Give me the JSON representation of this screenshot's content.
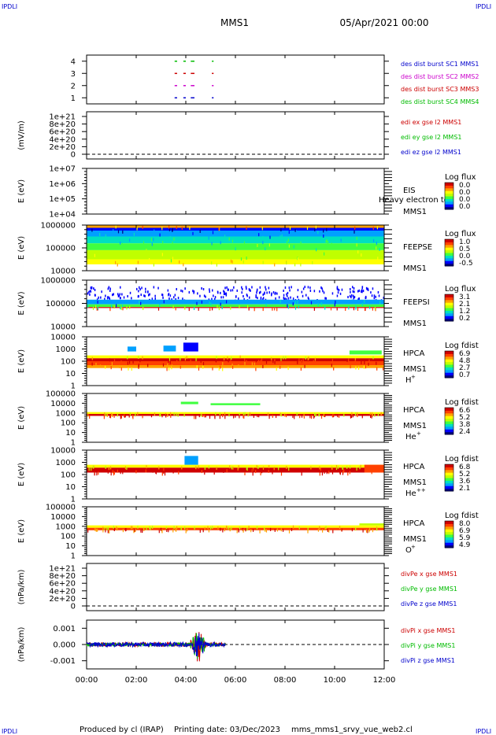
{
  "header": {
    "corner_tl": "IPDLI",
    "corner_tr": "IPDLI",
    "corner_bl": "IPDLI",
    "corner_br": "IPDLI",
    "title": "MMS1",
    "datetime": "05/Apr/2021 00:00"
  },
  "footer": {
    "produced_by": "Produced by cl (IRAP)",
    "printing_date": "Printing date: 03/Dec/2023",
    "script": "mms_mms1_srvy_vue_web2.cl"
  },
  "colors": {
    "spectrogram_scale": [
      "#000080",
      "#0000ff",
      "#00a0ff",
      "#00e0c0",
      "#40ff40",
      "#c0ff00",
      "#ffff00",
      "#ffa000",
      "#ff4000",
      "#d00000"
    ]
  },
  "chart_data": {
    "type": "multi-panel",
    "x_axis": {
      "ticks": [
        "00:00",
        "02:00",
        "04:00",
        "06:00",
        "08:00",
        "10:00",
        "12:00"
      ],
      "range_hours": [
        0,
        12
      ]
    },
    "panels": [
      {
        "id": "burst",
        "type": "scatter",
        "ylim": [
          0.5,
          4.5
        ],
        "ytick_labels": [
          "1",
          "2",
          "3",
          "4"
        ],
        "labels": [
          {
            "text": "des dist burst SC1 MMS1",
            "color": "#0000cc"
          },
          {
            "text": "des dist burst SC2 MMS2",
            "color": "#cc00cc"
          },
          {
            "text": "des dist burst SC3 MMS3",
            "color": "#cc0000"
          },
          {
            "text": "des dist burst SC4 MMS4",
            "color": "#00bb00"
          }
        ],
        "series": [
          {
            "level": 1,
            "color": "#0000cc",
            "intervals": [
              [
                3.55,
                3.65
              ],
              [
                3.9,
                4.0
              ],
              [
                4.2,
                4.35
              ],
              [
                5.05,
                5.12
              ]
            ]
          },
          {
            "level": 2,
            "color": "#cc00cc",
            "intervals": [
              [
                3.55,
                3.65
              ],
              [
                3.9,
                4.0
              ],
              [
                4.2,
                4.35
              ],
              [
                5.05,
                5.12
              ]
            ]
          },
          {
            "level": 3,
            "color": "#cc0000",
            "intervals": [
              [
                3.55,
                3.65
              ],
              [
                3.9,
                4.0
              ],
              [
                4.2,
                4.35
              ],
              [
                5.05,
                5.12
              ]
            ]
          },
          {
            "level": 4,
            "color": "#00bb00",
            "intervals": [
              [
                3.55,
                3.65
              ],
              [
                3.9,
                4.0
              ],
              [
                4.2,
                4.35
              ],
              [
                5.05,
                5.12
              ]
            ]
          }
        ]
      },
      {
        "id": "edi",
        "type": "line",
        "ylabel": "(mV/m)",
        "ytick_labels": [
          "1e+21",
          "8e+20",
          "6e+20",
          "4e+20",
          "2e+20",
          "0"
        ],
        "zero_line": true,
        "labels": [
          {
            "text": "edi ex gse l2 MMS1",
            "color": "#cc0000"
          },
          {
            "text": "edi ey gse l2 MMS1",
            "color": "#00bb00"
          },
          {
            "text": "edi ez gse l2 MMS1",
            "color": "#0000cc"
          }
        ]
      },
      {
        "id": "eis",
        "type": "heatmap",
        "ylabel": "E (eV)",
        "ytick_labels": [
          "1e+07",
          "1e+06",
          "1e+05",
          "1e+04"
        ],
        "instrument": "EIS",
        "sc": "MMS1",
        "overlay_text": "Heavy electron to",
        "cbar_title": "Log flux",
        "cbar_ticks": [
          "0.0",
          "0.0",
          "0.0",
          "0.0"
        ],
        "empty": true
      },
      {
        "id": "feepse",
        "type": "heatmap",
        "ylabel": "E (eV)",
        "ytick_labels": [
          "1000000",
          "100000",
          "10000"
        ],
        "instrument": "FEEPSE",
        "sc": "MMS1",
        "cbar_title": "Log flux",
        "cbar_ticks": [
          "1.0",
          "0.5",
          "0.0",
          "-0.5"
        ],
        "bands": [
          {
            "from": 0.0,
            "to": 0.06,
            "level": 7
          },
          {
            "from": 0.06,
            "to": 0.12,
            "level": 1
          },
          {
            "from": 0.12,
            "to": 0.25,
            "level": 2
          },
          {
            "from": 0.25,
            "to": 0.4,
            "level": 3
          },
          {
            "from": 0.4,
            "to": 0.55,
            "level": 4
          },
          {
            "from": 0.55,
            "to": 0.75,
            "level": 5
          },
          {
            "from": 0.75,
            "to": 0.86,
            "level": 6
          }
        ]
      },
      {
        "id": "feepsi",
        "type": "heatmap",
        "ylabel": "E (eV)",
        "ytick_labels": [
          "1000000",
          "100000",
          "10000"
        ],
        "instrument": "FEEPSI",
        "sc": "MMS1",
        "cbar_title": "Log flux",
        "cbar_ticks": [
          "3.1",
          "2.1",
          "1.2",
          "0.2"
        ],
        "bands": [
          {
            "from": 0.12,
            "to": 0.42,
            "level": 1,
            "sparse": true
          },
          {
            "from": 0.42,
            "to": 0.52,
            "level": 2
          },
          {
            "from": 0.52,
            "to": 0.58,
            "level": 4
          },
          {
            "from": 0.58,
            "to": 0.6,
            "level": 9
          }
        ]
      },
      {
        "id": "hpca_h",
        "type": "heatmap",
        "ylabel": "E (eV)",
        "ytick_labels": [
          "10000",
          "1000",
          "100",
          "10",
          "1"
        ],
        "instrument": "HPCA",
        "sc": "MMS1",
        "species": "H",
        "charge": "+",
        "cbar_title": "Log fdist",
        "cbar_ticks": [
          "6.9",
          "4.8",
          "2.7",
          "0.7"
        ],
        "bands": [
          {
            "from": 0.38,
            "to": 0.44,
            "level": 6
          },
          {
            "from": 0.44,
            "to": 0.5,
            "level": 9
          },
          {
            "from": 0.5,
            "to": 0.58,
            "level": 8
          },
          {
            "from": 0.58,
            "to": 0.64,
            "level": 7
          }
        ],
        "patches": [
          {
            "t0": 1.65,
            "t1": 2.0,
            "from": 0.2,
            "to": 0.3,
            "level": 2
          },
          {
            "t0": 3.1,
            "t1": 3.6,
            "from": 0.18,
            "to": 0.3,
            "level": 2
          },
          {
            "t0": 3.9,
            "t1": 4.5,
            "from": 0.12,
            "to": 0.3,
            "level": 1
          },
          {
            "t0": 10.6,
            "t1": 11.9,
            "from": 0.28,
            "to": 0.36,
            "level": 4
          }
        ]
      },
      {
        "id": "hpca_he",
        "type": "heatmap",
        "ylabel": "E (eV)",
        "ytick_labels": [
          "100000",
          "10000",
          "1000",
          "100",
          "10",
          "1"
        ],
        "instrument": "HPCA",
        "sc": "MMS1",
        "species": "He",
        "charge": "+",
        "cbar_title": "Log fdist",
        "cbar_ticks": [
          "6.6",
          "5.2",
          "3.8",
          "2.4"
        ],
        "bands": [
          {
            "from": 0.38,
            "to": 0.42,
            "level": 6
          },
          {
            "from": 0.42,
            "to": 0.46,
            "level": 9
          }
        ],
        "patches": [
          {
            "t0": 3.8,
            "t1": 4.5,
            "from": 0.17,
            "to": 0.22,
            "level": 4
          },
          {
            "t0": 5.0,
            "t1": 7.0,
            "from": 0.2,
            "to": 0.24,
            "level": 4
          }
        ]
      },
      {
        "id": "hpca_he2",
        "type": "heatmap",
        "ylabel": "E (eV)",
        "ytick_labels": [
          "10000",
          "1000",
          "100",
          "10",
          "1"
        ],
        "instrument": "HPCA",
        "sc": "MMS1",
        "species": "He",
        "charge": "++",
        "cbar_title": "Log fdist",
        "cbar_ticks": [
          "6.8",
          "5.2",
          "3.6",
          "2.1"
        ],
        "bands": [
          {
            "from": 0.3,
            "to": 0.36,
            "level": 6
          },
          {
            "from": 0.36,
            "to": 0.46,
            "level": 9
          }
        ],
        "patches": [
          {
            "t0": 3.95,
            "t1": 4.5,
            "from": 0.12,
            "to": 0.3,
            "level": 2
          },
          {
            "t0": 11.2,
            "t1": 12.0,
            "from": 0.3,
            "to": 0.46,
            "level": 8
          }
        ]
      },
      {
        "id": "hpca_o",
        "type": "heatmap",
        "ylabel": "E (eV)",
        "ytick_labels": [
          "100000",
          "10000",
          "1000",
          "100",
          "10",
          "1"
        ],
        "instrument": "HPCA",
        "sc": "MMS1",
        "species": "O",
        "charge": "+",
        "cbar_title": "Log fdist",
        "cbar_ticks": [
          "8.0",
          "6.9",
          "5.9",
          "4.9"
        ],
        "bands": [
          {
            "from": 0.38,
            "to": 0.43,
            "level": 6
          },
          {
            "from": 0.43,
            "to": 0.48,
            "level": 8
          }
        ],
        "patches": [
          {
            "t0": 11.0,
            "t1": 12.0,
            "from": 0.34,
            "to": 0.38,
            "level": 5
          }
        ]
      },
      {
        "id": "divpe",
        "type": "line",
        "ylabel": "(nPa/km)",
        "ytick_labels": [
          "1e+21",
          "8e+20",
          "6e+20",
          "4e+20",
          "2e+20",
          "0"
        ],
        "zero_line": true,
        "labels": [
          {
            "text": "divPe x gse MMS1",
            "color": "#cc0000"
          },
          {
            "text": "divPe y gse MMS1",
            "color": "#00bb00"
          },
          {
            "text": "divPe z gse MMS1",
            "color": "#0000cc"
          }
        ]
      },
      {
        "id": "divpi",
        "type": "line",
        "ylabel": "(nPa/km)",
        "ylim": [
          -0.0015,
          0.0015
        ],
        "ytick_labels": [
          "0.001",
          "0.000",
          "-0.001"
        ],
        "ytick_values": [
          0.001,
          0.0,
          -0.001
        ],
        "zero_line": true,
        "labels": [
          {
            "text": "divPi x gse MMS1",
            "color": "#cc0000"
          },
          {
            "text": "divPi y gse MMS1",
            "color": "#00bb00"
          },
          {
            "text": "divPi z gse MMS1",
            "color": "#0000cc"
          }
        ],
        "series": [
          {
            "name": "divPi x gse MMS1",
            "color": "#cc0000",
            "t_end": 5.6,
            "noise": 0.00012,
            "burst_amp": 0.0013
          },
          {
            "name": "divPi y gse MMS1",
            "color": "#00bb00",
            "t_end": 5.6,
            "noise": 0.0001,
            "burst_amp": 0.0011
          },
          {
            "name": "divPi z gse MMS1",
            "color": "#0000cc",
            "t_end": 5.6,
            "noise": 0.00014,
            "burst_amp": 0.0009
          }
        ]
      }
    ]
  }
}
